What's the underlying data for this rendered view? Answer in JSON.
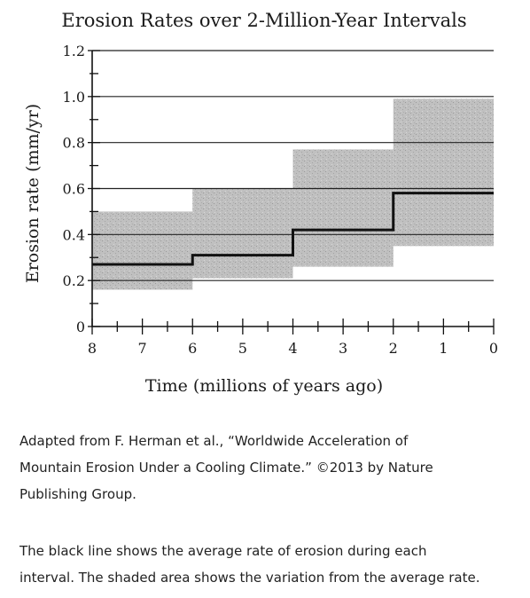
{
  "chart_data": {
    "type": "area",
    "title": "Erosion Rates over 2-Million-Year Intervals",
    "xlabel": "Time (millions of years ago)",
    "ylabel": "Erosion rate (mm/yr)",
    "xlim": [
      8,
      0
    ],
    "ylim": [
      0,
      1.2
    ],
    "x_ticks": [
      "8",
      "7",
      "6",
      "5",
      "4",
      "3",
      "2",
      "1",
      "0"
    ],
    "y_ticks": [
      "0",
      "0.2",
      "0.4",
      "0.6",
      "0.8",
      "1.0",
      "1.2"
    ],
    "grid": "horizontal",
    "intervals": [
      {
        "start": 8,
        "end": 6,
        "average": 0.27,
        "low": 0.16,
        "high": 0.5
      },
      {
        "start": 6,
        "end": 4,
        "average": 0.31,
        "low": 0.21,
        "high": 0.6
      },
      {
        "start": 4,
        "end": 2,
        "average": 0.42,
        "low": 0.26,
        "high": 0.77
      },
      {
        "start": 2,
        "end": 0,
        "average": 0.58,
        "low": 0.35,
        "high": 0.99
      }
    ],
    "colors": {
      "average_line": "#111111",
      "shaded_range": "#b9b9b9",
      "grid": "#222222"
    }
  },
  "caption": {
    "source_lines": [
      "Adapted from F. Herman et al., “Worldwide Acceleration of",
      "Mountain Erosion Under a Cooling Climate.” ©2013 by Nature",
      "Publishing Group."
    ],
    "note_lines": [
      "The black line shows the average rate of erosion during each",
      "interval. The shaded area shows the variation from the average rate."
    ]
  }
}
